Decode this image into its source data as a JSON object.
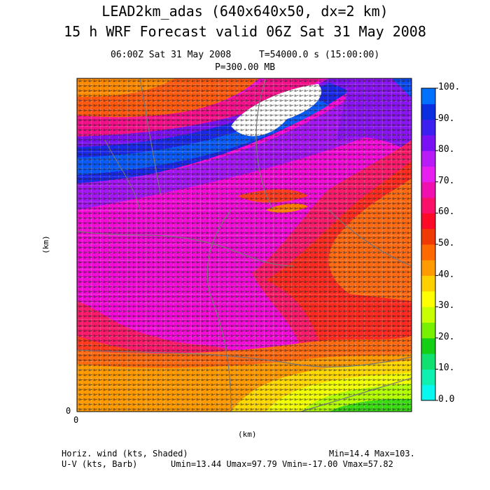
{
  "title_line1": "LEAD2km_adas (640x640x50, dx=2 km)",
  "title_line2": "15 h WRF Forecast valid 06Z Sat 31 May 2008",
  "time_left": "06:00Z Sat 31 May 2008",
  "time_right": "T=54000.0 s (15:00:00)",
  "pressure_level": "P=300.00 MB",
  "axes": {
    "y_label": "(km)",
    "x_label": "(km)",
    "x_origin_tick": "0",
    "y_origin_tick": "0"
  },
  "colorbar": {
    "labels": [
      "100.",
      "90.",
      "80.",
      "70.",
      "60.",
      "50.",
      "40.",
      "30.",
      "20.",
      "10.",
      "0.0"
    ],
    "colors": [
      "#0070ff",
      "#0a2ee0",
      "#3c20ef",
      "#7a10f4",
      "#b81cf6",
      "#e61ef0",
      "#f010b0",
      "#fa1068",
      "#fc0a28",
      "#f03a06",
      "#ff6a00",
      "#ff9a00",
      "#ffd000",
      "#ffff00",
      "#c8ff00",
      "#78f000",
      "#14d014",
      "#10e070",
      "#10f0b0",
      "#08f8f0"
    ]
  },
  "footer": {
    "line1_left": "Horiz. wind (kts, Shaded)",
    "line1_right": "Min=14.4 Max=103.",
    "line2_left": "U-V (kts, Barb)",
    "line2_right": "Umin=13.44 Umax=97.79 Vmin=-17.00 Vmax=57.82"
  }
}
